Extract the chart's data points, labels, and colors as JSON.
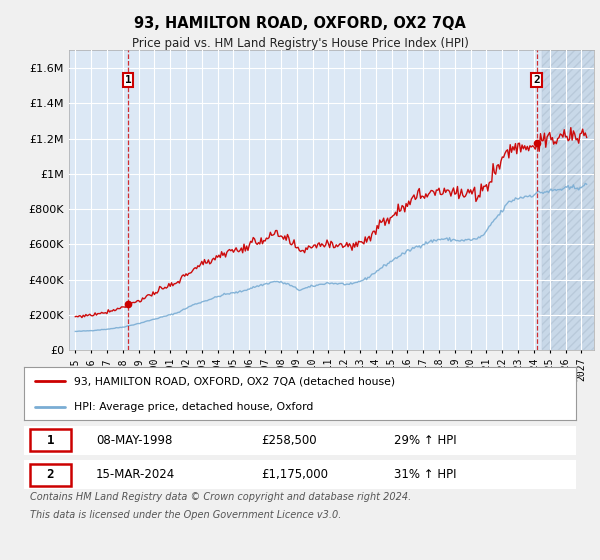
{
  "title": "93, HAMILTON ROAD, OXFORD, OX2 7QA",
  "subtitle": "Price paid vs. HM Land Registry's House Price Index (HPI)",
  "ylim": [
    0,
    1700000
  ],
  "yticks": [
    0,
    200000,
    400000,
    600000,
    800000,
    1000000,
    1200000,
    1400000,
    1600000
  ],
  "ytick_labels": [
    "£0",
    "£200K",
    "£400K",
    "£600K",
    "£800K",
    "£1M",
    "£1.2M",
    "£1.4M",
    "£1.6M"
  ],
  "hpi_color": "#7aadd4",
  "price_color": "#cc0000",
  "sale1_price": 258500,
  "sale2_price": 1175000,
  "legend_line1": "93, HAMILTON ROAD, OXFORD, OX2 7QA (detached house)",
  "legend_line2": "HPI: Average price, detached house, Oxford",
  "footnote1": "Contains HM Land Registry data © Crown copyright and database right 2024.",
  "footnote2": "This data is licensed under the Open Government Licence v3.0.",
  "background_color": "#f0f0f0",
  "plot_bg_color": "#dce8f5",
  "grid_color": "#ffffff",
  "hatch_color": "#c8d8e8",
  "xtick_years": [
    1995,
    1996,
    1997,
    1998,
    1999,
    2000,
    2001,
    2002,
    2003,
    2004,
    2005,
    2006,
    2007,
    2008,
    2009,
    2010,
    2011,
    2012,
    2013,
    2014,
    2015,
    2016,
    2017,
    2018,
    2019,
    2020,
    2021,
    2022,
    2023,
    2024,
    2025,
    2026,
    2027
  ],
  "xlim_left": 1994.6,
  "xlim_right": 2027.8
}
